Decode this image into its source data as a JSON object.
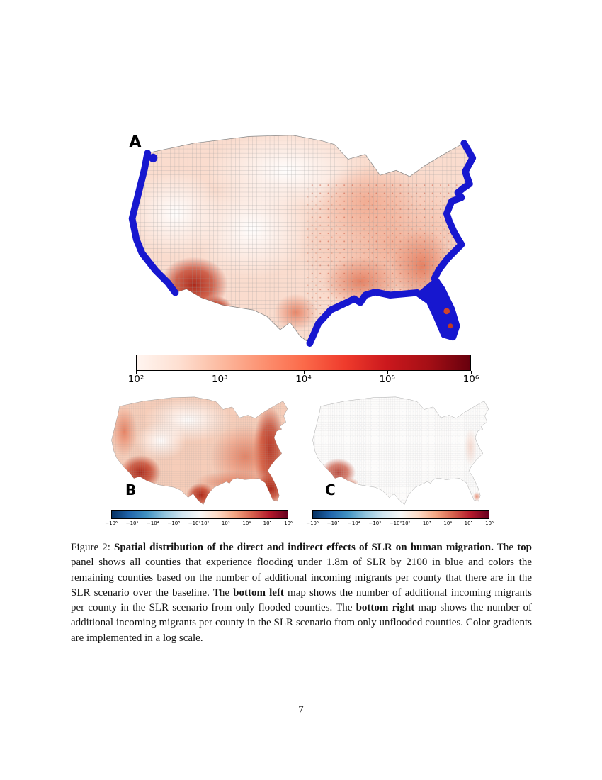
{
  "page": {
    "number": "7"
  },
  "figure": {
    "panels": [
      {
        "id": "A",
        "label": "A"
      },
      {
        "id": "B",
        "label": "B"
      },
      {
        "id": "C",
        "label": "C"
      }
    ],
    "colorbar_top": {
      "ticks": [
        "10²",
        "10³",
        "10⁴",
        "10⁵",
        "10⁶"
      ]
    },
    "colorbar_bottom": {
      "ticks": [
        "−10⁶",
        "−10⁵",
        "−10⁴",
        "−10³",
        "−10²",
        "10²",
        "10³",
        "10⁴",
        "10⁵",
        "10⁶"
      ]
    },
    "colors": {
      "flooded_blue": "#1717cf",
      "reds_scale_min": "#fff5f0",
      "reds_scale_max": "#67000d",
      "diverging_min": "#053061",
      "diverging_mid": "#f7f7f7",
      "diverging_max": "#67001f"
    }
  },
  "caption": {
    "segments": [
      {
        "text": "Figure 2: ",
        "bold": false
      },
      {
        "text": "Spatial distribution of the direct and indirect effects of SLR on human migration.",
        "bold": true
      },
      {
        "text": " The ",
        "bold": false
      },
      {
        "text": "top",
        "bold": true
      },
      {
        "text": " panel shows all counties that experience flooding under 1.8m of SLR by 2100 in blue and colors the remaining counties based on the number of additional incoming migrants per county that there are in the SLR scenario over the baseline. The ",
        "bold": false
      },
      {
        "text": "bottom left",
        "bold": true
      },
      {
        "text": " map shows the number of additional incoming migrants per county in the SLR scenario from only flooded counties. The ",
        "bold": false
      },
      {
        "text": "bottom right",
        "bold": true
      },
      {
        "text": " map shows the number of additional incoming migrants per county in the SLR scenario from only unflooded counties. Color gradients are implemented in a log scale.",
        "bold": false
      }
    ]
  }
}
